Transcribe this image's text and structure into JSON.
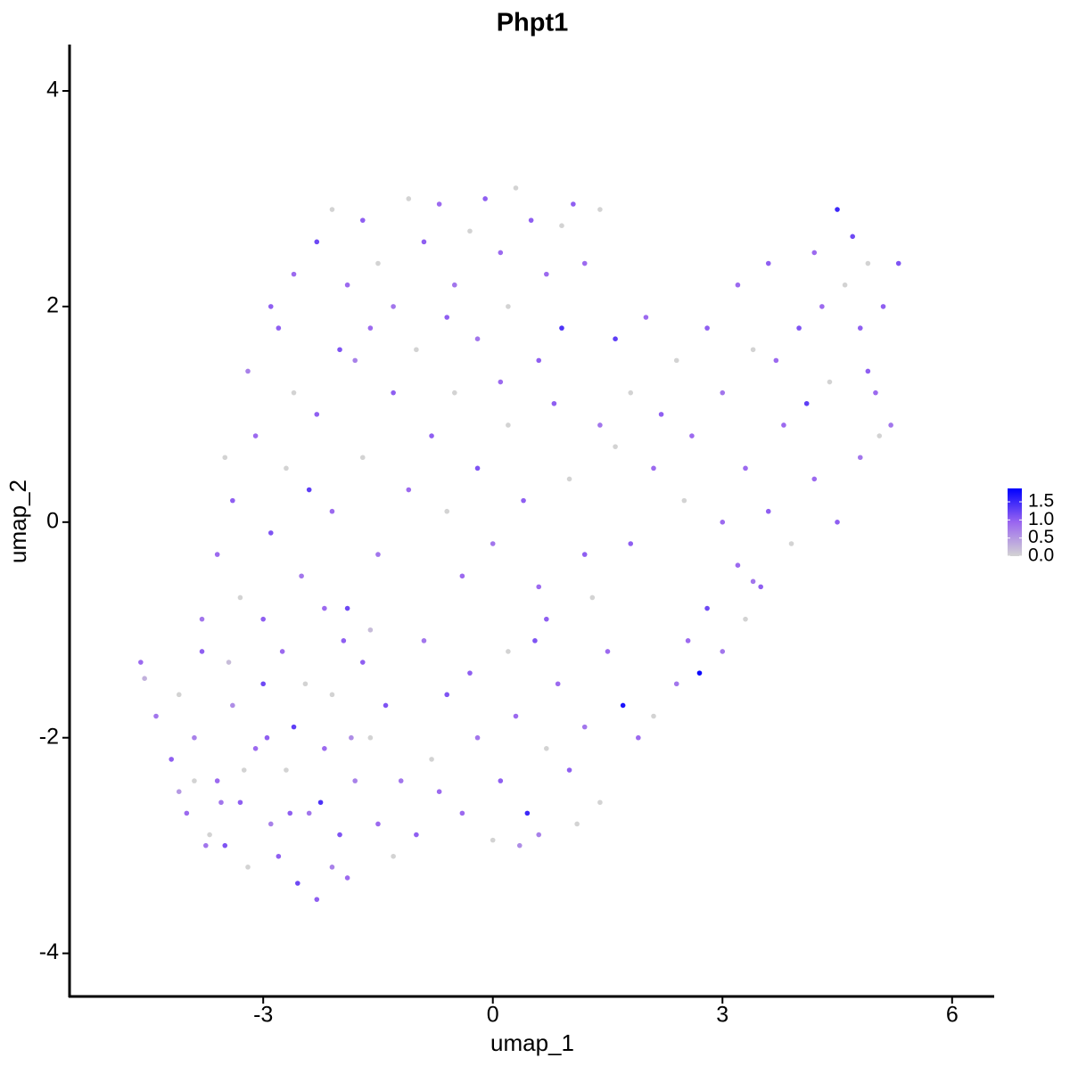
{
  "chart_data": {
    "type": "scatter",
    "title": "Phpt1",
    "x_label": "umap_1",
    "y_label": "umap_2",
    "xlim": [
      -5.53,
      6.55
    ],
    "ylim": [
      -4.4,
      4.43
    ],
    "xticks": [
      -3,
      0,
      3,
      6
    ],
    "yticks": [
      -4,
      -2,
      0,
      2,
      4
    ],
    "color_lim": [
      0,
      1.87
    ],
    "color_ticks": [
      {
        "value": 0,
        "label": "0.0"
      },
      {
        "value": 0.5,
        "label": "0.5"
      },
      {
        "value": 1,
        "label": "1.0"
      },
      {
        "value": 1.5,
        "label": "1.5"
      }
    ],
    "colors": [
      "#d3d3d3",
      "#9a66f0",
      "#0000ff"
    ],
    "x": [
      -4.6,
      -4.55,
      -4.4,
      -4.2,
      -4.1,
      -4.0,
      -3.9,
      -3.8,
      -3.7,
      -3.6,
      -3.5,
      -3.4,
      -3.3,
      -3.2,
      -3.1,
      -3.0,
      -2.9,
      -2.8,
      -2.7,
      -2.6,
      -2.55,
      -2.4,
      -2.3,
      -2.2,
      -2.1,
      -2.0,
      -1.9,
      -1.8,
      -1.7,
      -1.6,
      -1.5,
      -1.4,
      -1.3,
      -1.2,
      -3.9,
      -3.75,
      -3.45,
      -2.95,
      -2.75,
      -2.45,
      -2.25,
      -1.85,
      -4.1,
      -3.25,
      -2.65,
      -2.1,
      -1.95,
      -3.55,
      -1.0,
      -0.8,
      -0.6,
      -0.4,
      -0.2,
      0,
      0.1,
      0.3,
      0.45,
      0.6,
      0.7,
      0.85,
      1.0,
      1.2,
      1.4,
      1.7,
      1.5,
      0.2,
      -0.3,
      -0.9,
      0.55,
      1.9,
      2.1,
      2.4,
      2.7,
      2.55,
      3.0,
      3.3,
      3.5,
      3.2,
      -0.7,
      0.35,
      1.1,
      -3.6,
      -3.4,
      -3.3,
      -3.1,
      -2.9,
      -2.7,
      -2.5,
      -2.3,
      -2.1,
      -1.9,
      -1.7,
      -1.5,
      -1.3,
      -1.1,
      -3.8,
      -3.2,
      -2.8,
      -2.6,
      -2.2,
      -1.8,
      -1.6,
      -3.0,
      -3.5,
      -2.4,
      -2.9,
      -2.6,
      -2.3,
      -2.1,
      -1.9,
      -1.7,
      -1.5,
      -1.3,
      -1.1,
      -0.9,
      -0.7,
      -0.5,
      -0.3,
      -0.1,
      0.1,
      0.3,
      0.5,
      0.7,
      0.9,
      1.05,
      1.2,
      -2.0,
      -1.6,
      -1.0,
      -0.6,
      -0.2,
      0.2,
      0.6,
      0.9,
      1.4,
      -0.8,
      -0.6,
      -0.4,
      -0.2,
      0,
      0.2,
      0.4,
      0.6,
      0.8,
      1.0,
      1.2,
      1.4,
      0.1,
      -0.5,
      0.7,
      1.3,
      1.6,
      1.8,
      2.0,
      2.2,
      2.4,
      2.6,
      2.8,
      3.0,
      3.2,
      3.4,
      3.6,
      3.8,
      4.0,
      4.2,
      4.4,
      4.5,
      4.6,
      4.7,
      4.8,
      4.9,
      5.0,
      5.1,
      5.2,
      5.3,
      3.3,
      3.6,
      3.9,
      4.2,
      4.5,
      4.8,
      5.05,
      3.0,
      2.8,
      3.4,
      4.1,
      4.3,
      2.5,
      2.1,
      1.8,
      1.6,
      3.7,
      4.9
    ],
    "y": [
      -1.3,
      -1.45,
      -1.8,
      -2.2,
      -1.6,
      -2.7,
      -2.0,
      -1.2,
      -2.9,
      -2.4,
      -3.0,
      -1.7,
      -2.6,
      -3.2,
      -2.1,
      -1.5,
      -2.8,
      -3.1,
      -2.3,
      -1.9,
      -3.35,
      -2.7,
      -3.5,
      -2.1,
      -1.6,
      -2.9,
      -3.3,
      -2.4,
      -1.3,
      -2.0,
      -2.8,
      -1.7,
      -3.1,
      -2.4,
      -2.4,
      -3.0,
      -1.3,
      -2.0,
      -1.2,
      -1.5,
      -2.6,
      -2.0,
      -2.5,
      -2.3,
      -2.7,
      -3.2,
      -1.1,
      -2.6,
      -2.9,
      -2.2,
      -1.6,
      -2.7,
      -2.0,
      -2.95,
      -2.4,
      -1.8,
      -2.7,
      -2.9,
      -2.1,
      -1.5,
      -2.3,
      -1.9,
      -2.6,
      -1.7,
      -1.2,
      -1.2,
      -1.4,
      -1.1,
      -1.1,
      -2.0,
      -1.8,
      -1.5,
      -1.4,
      -1.1,
      -1.2,
      -0.9,
      -0.6,
      -0.4,
      -2.5,
      -3.0,
      -2.8,
      -0.3,
      0.2,
      -0.7,
      0.8,
      -0.1,
      0.5,
      -0.5,
      1.0,
      0.1,
      -0.8,
      0.6,
      -0.3,
      1.2,
      0.3,
      -0.9,
      1.4,
      1.8,
      1.2,
      -0.8,
      1.5,
      -1.0,
      -0.9,
      0.6,
      0.3,
      2.0,
      2.3,
      2.6,
      2.9,
      2.2,
      2.8,
      2.4,
      2.0,
      3.0,
      2.6,
      2.95,
      2.2,
      2.7,
      3.0,
      2.5,
      3.1,
      2.8,
      2.3,
      2.75,
      2.95,
      2.4,
      1.6,
      1.8,
      1.6,
      1.9,
      1.7,
      2.0,
      1.5,
      1.8,
      2.9,
      0.8,
      0.1,
      -0.5,
      0.5,
      -0.2,
      0.9,
      0.2,
      -0.6,
      1.1,
      0.4,
      -0.3,
      0.9,
      1.3,
      1.2,
      -0.9,
      -0.7,
      1.7,
      1.2,
      1.9,
      1.0,
      1.5,
      0.8,
      1.8,
      1.2,
      2.2,
      1.6,
      2.4,
      0.9,
      1.8,
      2.5,
      1.3,
      2.9,
      2.2,
      2.65,
      1.8,
      2.4,
      1.2,
      2.0,
      0.9,
      2.4,
      0.5,
      0.1,
      -0.2,
      0.4,
      0.0,
      0.6,
      0.8,
      0.0,
      -0.8,
      -0.55,
      1.1,
      2.0,
      0.2,
      0.5,
      -0.2,
      0.7,
      1.5,
      1.4
    ],
    "values": [
      0.9,
      0.3,
      0.8,
      1.0,
      0,
      0.9,
      0.7,
      1.0,
      0,
      0.9,
      1.1,
      0.6,
      1.0,
      0,
      0.9,
      1.2,
      0.7,
      1.0,
      0,
      1.3,
      1.2,
      0.8,
      1.0,
      0.9,
      0,
      1.1,
      0.9,
      0.7,
      1.0,
      0,
      0.9,
      1.1,
      0,
      0.8,
      0,
      0.8,
      0.2,
      1.0,
      0.9,
      0,
      1.4,
      0.6,
      0.5,
      0,
      1.0,
      0.7,
      1.0,
      0.8,
      1.0,
      0,
      1.1,
      0.9,
      0.8,
      0,
      1.0,
      0.9,
      1.5,
      0.7,
      0,
      0.9,
      1.0,
      0.8,
      0,
      1.7,
      0.9,
      0,
      1.0,
      0.8,
      1.1,
      0.9,
      0,
      0.8,
      1.8,
      0.9,
      0.8,
      0,
      1.0,
      0.9,
      0.9,
      0.6,
      0,
      0.9,
      1.0,
      0,
      0.9,
      1.1,
      0,
      0.8,
      1.0,
      0.9,
      1.2,
      0,
      0.8,
      1.0,
      0.9,
      0.8,
      0.7,
      1.0,
      0,
      0.9,
      0.7,
      0.2,
      1.0,
      0,
      1.3,
      1.0,
      0.9,
      1.2,
      0,
      0.9,
      1.0,
      0,
      0.8,
      0,
      1.0,
      0.9,
      0.8,
      0,
      1.0,
      0.9,
      0,
      1.0,
      0.9,
      0,
      1.0,
      0.9,
      1.1,
      0.9,
      0,
      1.0,
      0.8,
      0,
      1.0,
      1.4,
      0,
      1.0,
      0,
      0.9,
      1.1,
      0.8,
      0,
      1.0,
      0.9,
      1.0,
      0,
      1.0,
      0.8,
      0.9,
      0,
      1.0,
      0,
      1.3,
      0,
      0.9,
      1.0,
      0,
      0.9,
      1.0,
      0.8,
      0.9,
      0,
      1.0,
      0.9,
      1.1,
      0.9,
      0,
      1.5,
      0,
      1.2,
      1.0,
      0,
      0.9,
      1.0,
      0.8,
      1.1,
      0.9,
      1.0,
      0,
      0.9,
      1.0,
      0.8,
      0,
      0.9,
      1.2,
      0.8,
      1.3,
      0.9,
      0,
      0.9,
      1.0,
      0,
      0.9,
      1.0
    ]
  }
}
